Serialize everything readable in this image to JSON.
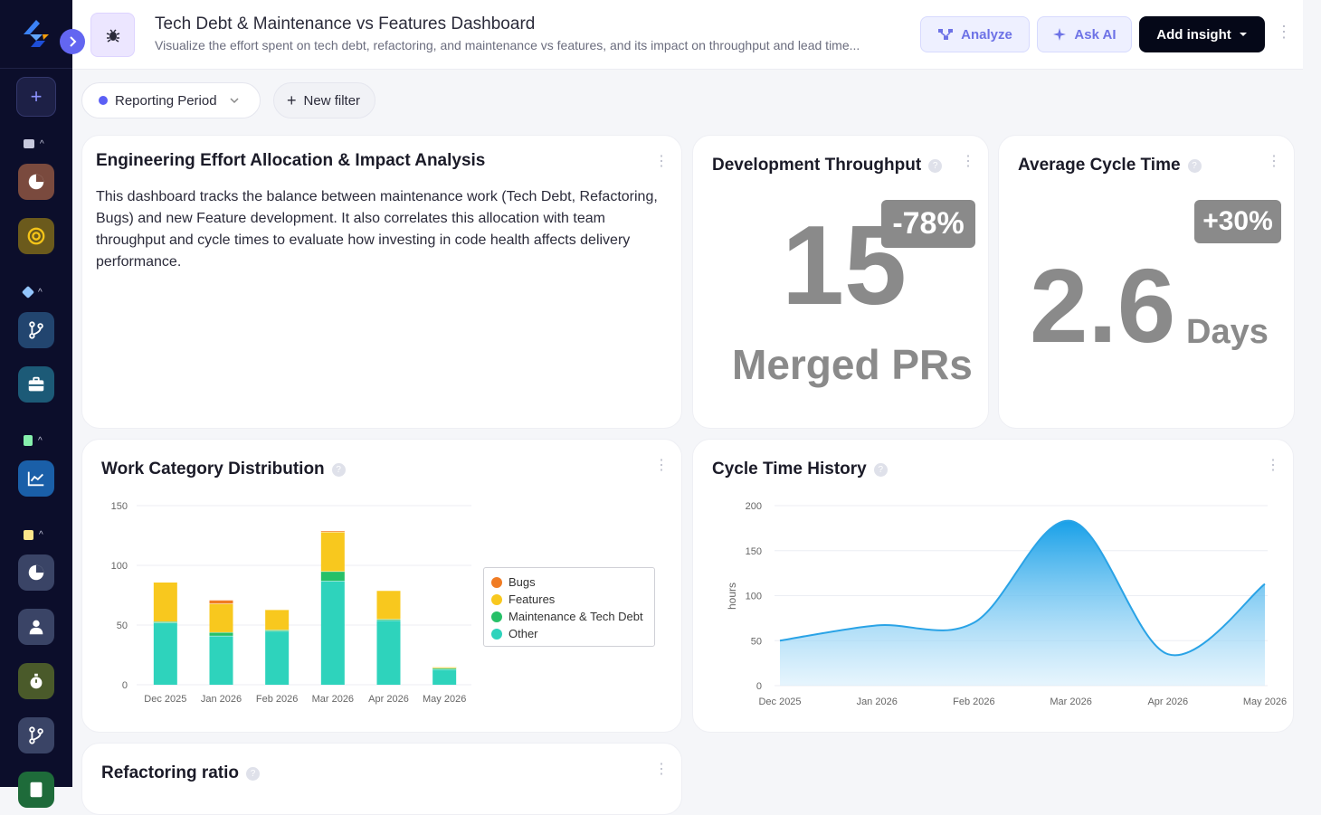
{
  "header": {
    "title": "Tech Debt & Maintenance vs Features Dashboard",
    "subtitle": "Visualize the effort spent on tech debt, refactoring, and maintenance vs features, and its impact on throughput and lead time...",
    "analyze_label": "Analyze",
    "askai_label": "Ask AI",
    "add_insight_label": "Add insight"
  },
  "filters": {
    "period_label": "Reporting Period",
    "new_filter_label": "New filter"
  },
  "summary": {
    "title": "Engineering Effort Allocation & Impact Analysis",
    "text": "This dashboard tracks the balance between maintenance work (Tech Debt, Refactoring, Bugs) and new Feature development. It also correlates this allocation with team throughput and cycle times to evaluate how investing in code health affects delivery performance."
  },
  "throughput": {
    "title": "Development Throughput",
    "badge": "-78%",
    "value": "15",
    "unit": "Merged PRs"
  },
  "cycle": {
    "title": "Average Cycle Time",
    "badge": "+30%",
    "value": "2.6",
    "unit": "Days"
  },
  "work_dist": {
    "title": "Work Category Distribution",
    "legend": [
      {
        "label": "Bugs",
        "color": "#f07c24"
      },
      {
        "label": "Features",
        "color": "#f8c81e"
      },
      {
        "label": "Maintenance & Tech Debt",
        "color": "#27c068"
      },
      {
        "label": "Other",
        "color": "#2ed3bc"
      }
    ]
  },
  "history": {
    "title": "Cycle Time History"
  },
  "refactor": {
    "title": "Refactoring ratio"
  },
  "chart_data": [
    {
      "type": "bar",
      "stacked": true,
      "categories": [
        "Dec 2025",
        "Jan 2026",
        "Feb 2026",
        "Mar 2026",
        "Apr 2026",
        "May 2026"
      ],
      "series": [
        {
          "name": "Other",
          "color": "#2ed3bc",
          "values": [
            52,
            41,
            45,
            87,
            54,
            13
          ]
        },
        {
          "name": "Maintenance & Tech Debt",
          "color": "#27c068",
          "values": [
            1,
            3,
            1,
            8,
            1,
            1
          ]
        },
        {
          "name": "Features",
          "color": "#f8c81e",
          "values": [
            33,
            24,
            17,
            33,
            24,
            1
          ]
        },
        {
          "name": "Bugs",
          "color": "#f07c24",
          "values": [
            0,
            3,
            0,
            1,
            0,
            0
          ]
        }
      ],
      "ylim": [
        0,
        150
      ],
      "yticks": [
        0,
        50,
        100,
        150
      ],
      "grid": true,
      "legend": "right"
    },
    {
      "type": "area",
      "x": [
        "Dec 2025",
        "Jan 2026",
        "Feb 2026",
        "Mar 2026",
        "Apr 2026",
        "May 2026"
      ],
      "x_values": [
        0,
        1,
        2,
        3,
        4,
        5
      ],
      "y": [
        50,
        67,
        70,
        183,
        35,
        113
      ],
      "ylabel": "hours",
      "ylim": [
        0,
        200
      ],
      "yticks": [
        0,
        50,
        100,
        150,
        200
      ],
      "color": "#2aa3e6",
      "grid": true
    }
  ]
}
